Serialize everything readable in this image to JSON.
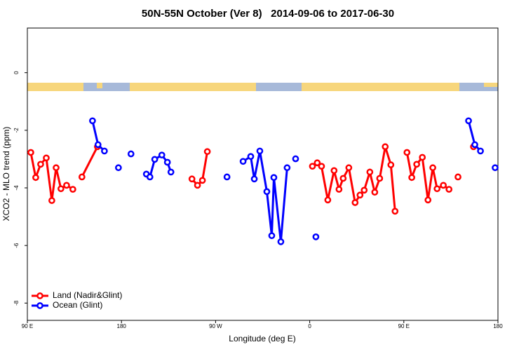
{
  "chart_data": {
    "type": "line",
    "title": "50N-55N October (Ver 8)   2014-09-06 to 2017-06-30",
    "x_label": "Longitude (deg E)",
    "y_label": "XCO2 - MLO trend (ppm)",
    "xlim": [
      90,
      540
    ],
    "ylim": [
      -8.6,
      1.55
    ],
    "xticks": [
      {
        "value": 90,
        "label": "90 E"
      },
      180,
      {
        "value": 270,
        "label": "90 W"
      },
      {
        "value": 360,
        "label": "0"
      },
      {
        "value": 450,
        "label": "90 E"
      },
      {
        "value": 540,
        "label": "180"
      }
    ],
    "yticks": [
      0,
      -2,
      -4,
      -6,
      -8
    ],
    "legend": "bottom-left",
    "series": [
      {
        "name": "Land (Nadir&Glint)",
        "color": "#ff0000",
        "x": [
          93.3,
          98.0,
          102.7,
          108.1,
          113.4,
          117.5,
          122.1,
          127.5,
          133.5,
          null,
          142.2,
          157.0,
          null,
          247.4,
          252.7,
          257.4,
          262.1,
          null,
          362.6,
          367.2,
          371.3,
          377.3,
          383.3,
          388.0,
          392.0,
          397.4,
          403.4,
          408.1,
          412.1,
          417.5,
          422.2,
          426.9,
          432.2,
          437.6,
          441.6,
          null,
          453.0,
          457.6,
          462.3,
          467.7,
          473.1,
          477.7,
          481.8,
          487.8,
          493.2,
          null,
          501.8,
          null,
          516.6
        ],
        "values": [
          -2.77,
          -3.64,
          -3.18,
          -2.96,
          -4.44,
          -3.3,
          -4.03,
          -3.91,
          -4.05,
          null,
          -3.62,
          -2.57,
          null,
          -3.69,
          -3.91,
          -3.74,
          -2.74,
          null,
          -3.25,
          -3.13,
          -3.25,
          -4.42,
          -3.4,
          -4.05,
          -3.67,
          -3.3,
          -4.51,
          -4.25,
          -4.08,
          -3.45,
          -4.15,
          -3.67,
          -2.57,
          -3.2,
          -4.81,
          null,
          -2.77,
          -3.64,
          -3.18,
          -2.94,
          -4.42,
          -3.3,
          -4.03,
          -3.91,
          -4.05,
          null,
          -3.62,
          null,
          -2.57
        ]
      },
      {
        "name": "Ocean (Glint)",
        "color": "#0000ff",
        "x": [
          152.3,
          157.6,
          163.7,
          null,
          177.1,
          null,
          189.1,
          null,
          203.8,
          207.2,
          211.8,
          218.6,
          223.9,
          227.3,
          null,
          280.9,
          null,
          296.3,
          303.6,
          307.0,
          312.3,
          319.0,
          323.7,
          325.7,
          332.4,
          338.4,
          null,
          346.5,
          null,
          365.9,
          null,
          511.9,
          517.9,
          523.3,
          null,
          537.3
        ],
        "values": [
          -1.67,
          -2.5,
          -2.72,
          null,
          -3.3,
          null,
          -2.82,
          null,
          -3.52,
          -3.62,
          -3.01,
          -2.86,
          -3.11,
          -3.45,
          null,
          -3.62,
          null,
          -3.08,
          -2.91,
          -3.69,
          -2.72,
          -4.13,
          -5.66,
          -3.64,
          -5.87,
          -3.3,
          null,
          -2.99,
          null,
          -5.7,
          null,
          -1.67,
          -2.5,
          -2.72,
          null,
          -3.3
        ]
      }
    ]
  }
}
